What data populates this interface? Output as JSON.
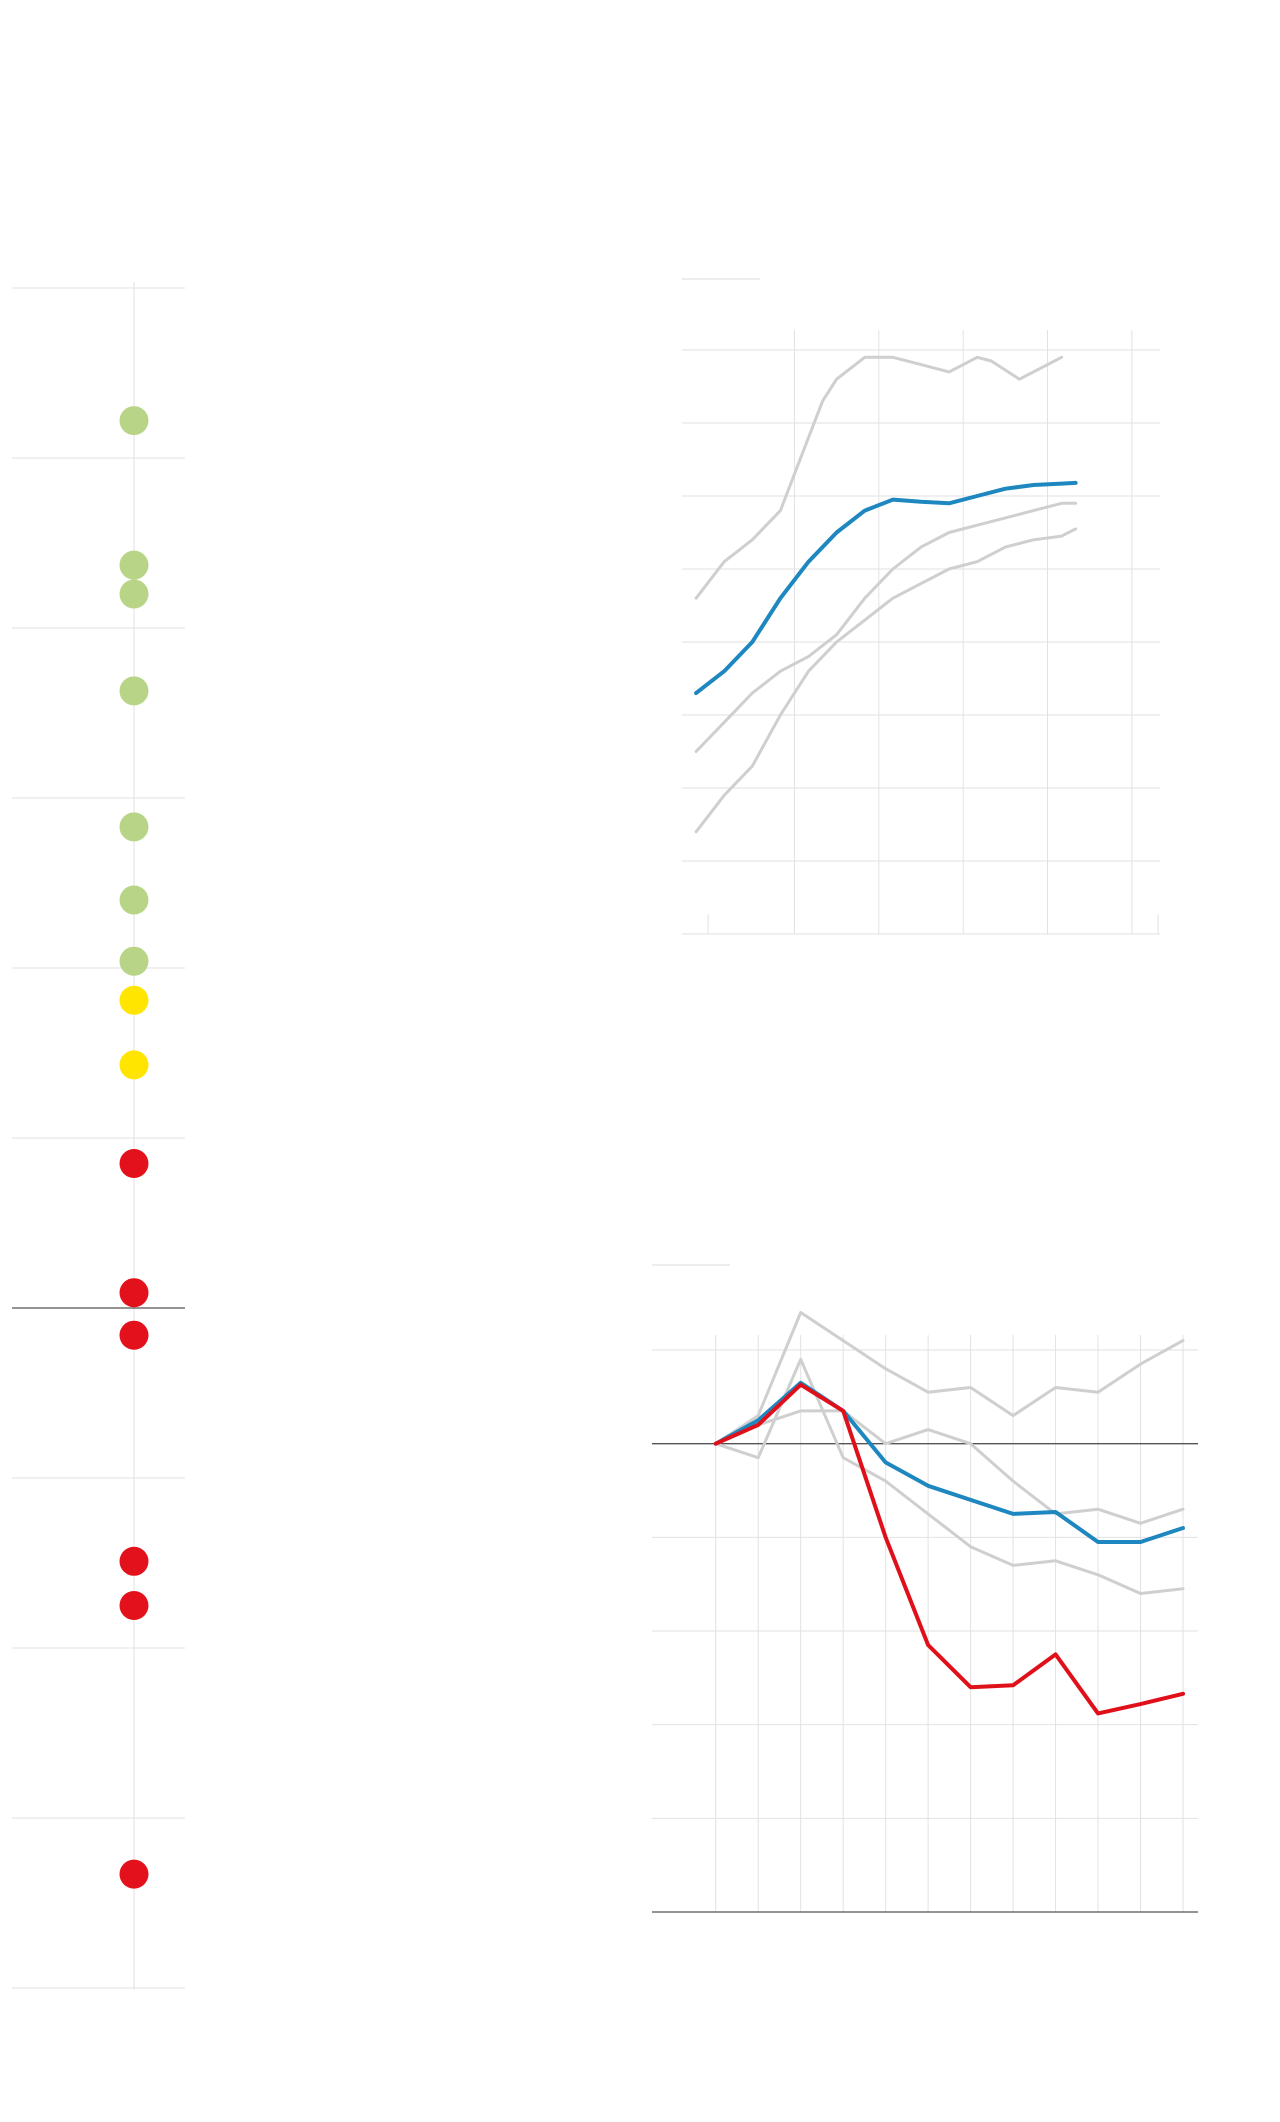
{
  "colors": {
    "grid": "#e2e2e2",
    "baseline": "#555555",
    "context_series": "#cfcfcf",
    "highlight_blue": "#1e87c0",
    "highlight_red": "#e0101a",
    "dot_green": "#b7d487",
    "dot_yellow": "#ffe500",
    "dot_red": "#e3111b"
  },
  "chart_data": [
    {
      "type": "scatter",
      "title": "",
      "orientation": "vertical",
      "yrange": [
        0,
        10
      ],
      "reference_line": 6,
      "grid": true,
      "points": [
        {
          "value": 0.78,
          "group": "green"
        },
        {
          "value": 1.63,
          "group": "green"
        },
        {
          "value": 1.8,
          "group": "green"
        },
        {
          "value": 2.37,
          "group": "green"
        },
        {
          "value": 3.17,
          "group": "green"
        },
        {
          "value": 3.6,
          "group": "green"
        },
        {
          "value": 3.96,
          "group": "green"
        },
        {
          "value": 4.19,
          "group": "yellow"
        },
        {
          "value": 4.57,
          "group": "yellow"
        },
        {
          "value": 5.15,
          "group": "red"
        },
        {
          "value": 5.91,
          "group": "red"
        },
        {
          "value": 6.16,
          "group": "red"
        },
        {
          "value": 7.49,
          "group": "red"
        },
        {
          "value": 7.75,
          "group": "red"
        },
        {
          "value": 9.33,
          "group": "red"
        }
      ]
    },
    {
      "type": "line",
      "title": "",
      "xlabel": "",
      "ylabel": "",
      "xlim": [
        0,
        17
      ],
      "ylim": [
        0,
        8
      ],
      "grid": true,
      "series": [
        {
          "role": "context",
          "x": [
            0.5,
            1.5,
            2.5,
            3.5,
            4.5,
            5,
            5.5,
            6.5,
            7.5,
            8.5,
            9.5,
            10.5,
            11,
            12,
            13.5
          ],
          "values": [
            4.6,
            5.1,
            5.4,
            5.8,
            6.8,
            7.3,
            7.6,
            7.9,
            7.9,
            7.8,
            7.7,
            7.9,
            7.85,
            7.6,
            7.9
          ]
        },
        {
          "role": "highlight",
          "x": [
            0.5,
            1.5,
            2.5,
            3.5,
            4.5,
            5.5,
            6.5,
            7.5,
            8.5,
            9.5,
            10.5,
            11.5,
            12.5,
            13.5,
            14
          ],
          "values": [
            3.3,
            3.6,
            4.0,
            4.6,
            5.1,
            5.5,
            5.8,
            5.95,
            5.92,
            5.9,
            6.0,
            6.1,
            6.15,
            6.17,
            6.18
          ]
        },
        {
          "role": "context",
          "x": [
            0.5,
            1.5,
            2.5,
            3.5,
            4.5,
            5.5,
            6.5,
            7.5,
            8.5,
            9.5,
            10.5,
            11.5,
            12.5,
            13.5,
            14
          ],
          "values": [
            2.5,
            2.9,
            3.3,
            3.6,
            3.8,
            4.1,
            4.6,
            5.0,
            5.3,
            5.5,
            5.6,
            5.7,
            5.8,
            5.9,
            5.9
          ]
        },
        {
          "role": "context",
          "x": [
            0.5,
            1.5,
            2.5,
            3.5,
            4.5,
            5.5,
            6.5,
            7.5,
            8.5,
            9.5,
            10.5,
            11.5,
            12.5,
            13.5,
            14
          ],
          "values": [
            1.4,
            1.9,
            2.3,
            3.0,
            3.6,
            4.0,
            4.3,
            4.6,
            4.8,
            5.0,
            5.1,
            5.3,
            5.4,
            5.45,
            5.55
          ]
        }
      ]
    },
    {
      "type": "line",
      "title": "",
      "xlabel": "",
      "ylabel": "",
      "xlim": [
        0,
        12.5
      ],
      "ylim": [
        -5,
        1
      ],
      "reference_line": 0,
      "grid": true,
      "series": [
        {
          "role": "context",
          "x": [
            1.5,
            2.5,
            3.5,
            4.5,
            5.5,
            6.5,
            7.5,
            8.5,
            9.5,
            10.5,
            11.5,
            12.5
          ],
          "values": [
            0,
            0.3,
            1.4,
            1.1,
            0.8,
            0.55,
            0.6,
            0.3,
            0.6,
            0.55,
            0.85,
            1.1
          ]
        },
        {
          "role": "context",
          "x": [
            1.5,
            2.5,
            3.5,
            4.5,
            5.5,
            6.5,
            7.5,
            8.5,
            9.5,
            10.5,
            11.5,
            12.5
          ],
          "values": [
            0,
            0.2,
            0.35,
            0.35,
            0,
            0.15,
            0,
            -0.4,
            -0.75,
            -0.7,
            -0.85,
            -0.7
          ]
        },
        {
          "role": "context",
          "x": [
            1.5,
            2.5,
            3.5,
            4.5,
            5.5,
            6.5,
            7.5,
            8.5,
            9.5,
            10.5,
            11.5,
            12.5
          ],
          "values": [
            0,
            -0.15,
            0.9,
            -0.15,
            -0.4,
            -0.75,
            -1.1,
            -1.3,
            -1.25,
            -1.4,
            -1.6,
            -1.55
          ]
        },
        {
          "role": "highlight",
          "x": [
            1.5,
            2.5,
            3.5,
            4.5,
            5.5,
            6.5,
            7.5,
            8.5,
            9.5,
            10.5,
            11.5,
            12.5
          ],
          "values": [
            0,
            0.25,
            0.65,
            0.35,
            -0.2,
            -0.45,
            -0.6,
            -0.75,
            -0.73,
            -1.05,
            -1.05,
            -0.9
          ]
        },
        {
          "role": "highlight_red",
          "x": [
            1.5,
            2.5,
            3.5,
            4.5,
            5.5,
            6.5,
            7.5,
            8.5,
            9.5,
            10.5,
            11.5,
            12.5
          ],
          "values": [
            0,
            0.2,
            0.63,
            0.35,
            -1.0,
            -2.15,
            -2.6,
            -2.58,
            -2.25,
            -2.88,
            -2.78,
            -2.67
          ]
        }
      ]
    }
  ]
}
